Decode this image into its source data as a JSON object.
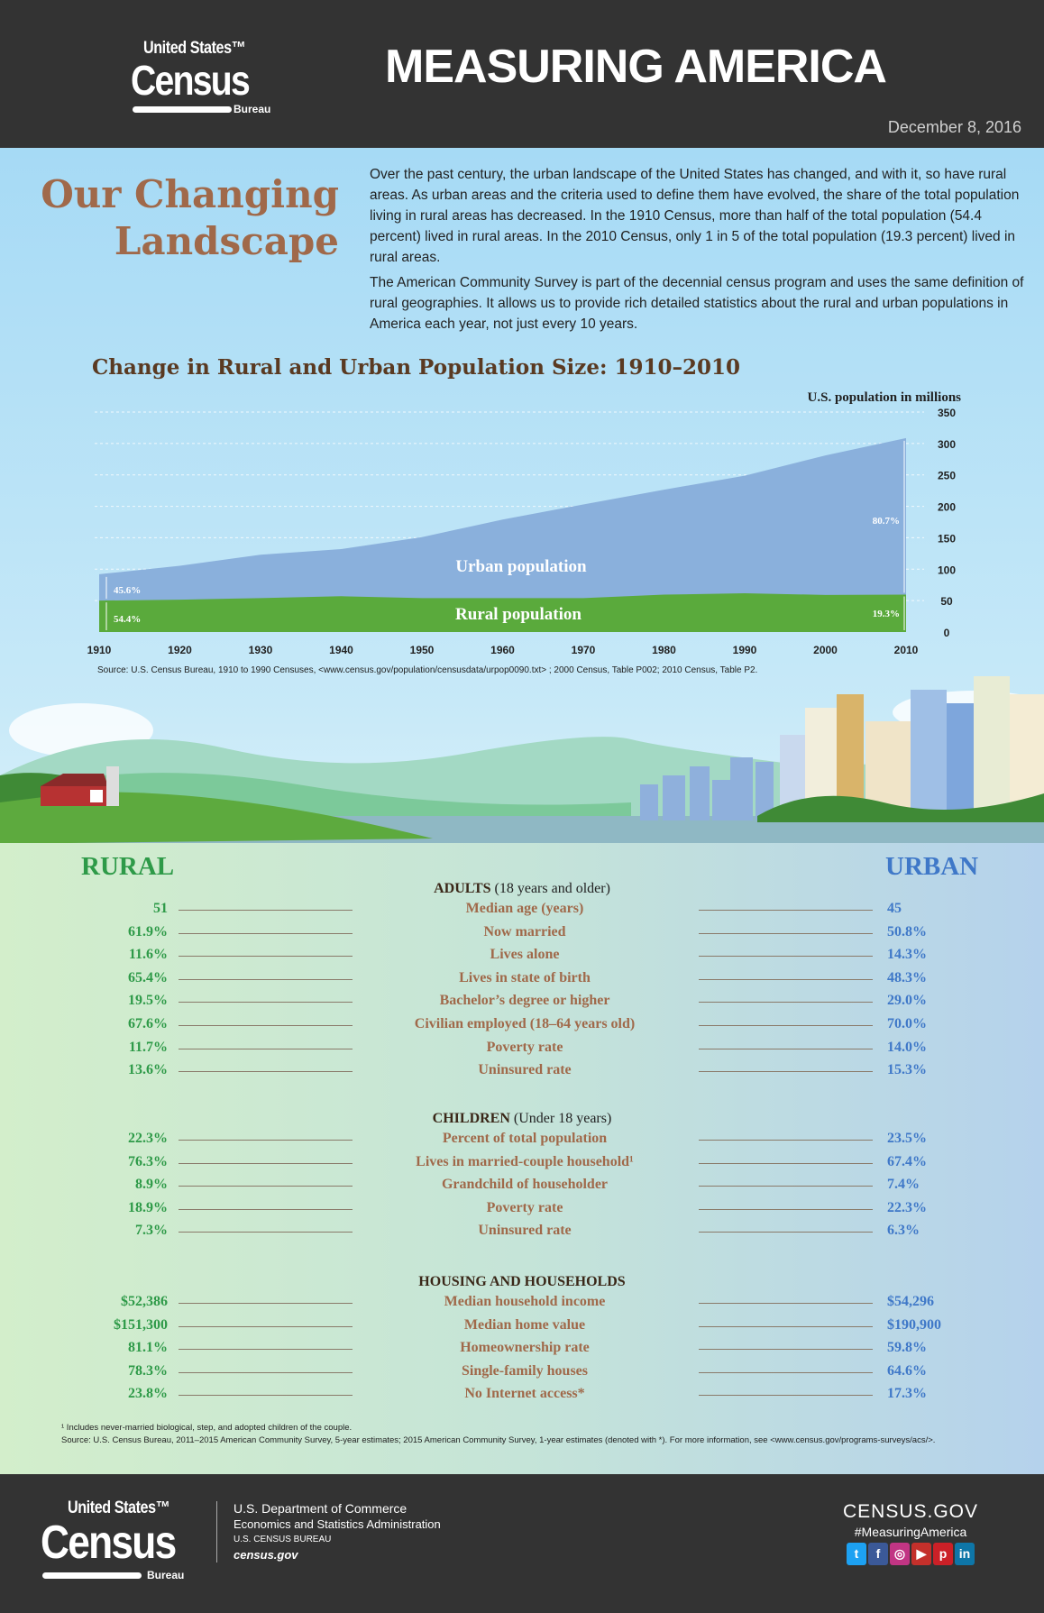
{
  "header": {
    "logo": "United States Census Bureau",
    "title": "MEASURING AMERICA",
    "date": "December 8, 2016"
  },
  "intro": {
    "heading_line1": "Our Changing",
    "heading_line2": "Landscape",
    "p1": "Over the past century, the urban landscape of the United States has changed, and with it, so have rural areas. As urban areas and the criteria used to define them have evolved, the share of the total population living in rural areas has decreased. In the 1910 Census, more than half of the total population (54.4 percent) lived in rural areas. In the 2010 Census, only 1 in 5 of the total population (19.3 percent) lived in rural areas.",
    "p2": "The American Community Survey is part of the decennial census program and uses the same definition of rural geographies. It allows us to provide rich detailed statistics about the rural and urban populations in America each year, not just every 10 years."
  },
  "chart_data": {
    "type": "area",
    "stacked": true,
    "title": "Change in Rural and Urban Population Size: 1910–2010",
    "ylabel": "U.S. population in millions",
    "x": [
      1910,
      1920,
      1930,
      1940,
      1950,
      1960,
      1970,
      1980,
      1990,
      2000,
      2010
    ],
    "ylim": [
      0,
      350
    ],
    "yticks": [
      0,
      50,
      100,
      150,
      200,
      250,
      300,
      350
    ],
    "series": [
      {
        "name": "Rural population",
        "color": "#5aaa3c",
        "values": [
          50,
          51.5,
          54,
          57,
          54,
          54,
          54,
          59.5,
          61.7,
          59,
          59.5
        ]
      },
      {
        "name": "Urban population",
        "color": "#8ab0dc",
        "values": [
          42,
          54,
          69,
          75,
          97,
          125,
          149,
          167,
          187,
          222,
          249
        ]
      }
    ],
    "annotations": {
      "urban_1910": "45.6%",
      "rural_1910": "54.4%",
      "urban_2010": "80.7%",
      "rural_2010": "19.3%"
    },
    "grid": true,
    "source": "Source: U.S. Census Bureau, 1910 to 1990 Censuses, <www.census.gov/population/censusdata/urpop0090.txt> ; 2000 Census, Table P002; 2010 Census, Table P2."
  },
  "stats": {
    "rural_label": "RURAL",
    "urban_label": "URBAN",
    "rural_color": "#2e9a48",
    "urban_color": "#3f78c8",
    "sections": [
      {
        "title": "ADULTS",
        "subtitle": " (18 years and older)",
        "rows": [
          {
            "label": "Median age (years)",
            "rural": "51",
            "urban": "45"
          },
          {
            "label": "Now married",
            "rural": "61.9%",
            "urban": "50.8%"
          },
          {
            "label": "Lives alone",
            "rural": "11.6%",
            "urban": "14.3%"
          },
          {
            "label": "Lives in state of birth",
            "rural": "65.4%",
            "urban": "48.3%"
          },
          {
            "label": "Bachelor’s degree or higher",
            "rural": "19.5%",
            "urban": "29.0%"
          },
          {
            "label": "Civilian employed (18–64 years old)",
            "rural": "67.6%",
            "urban": "70.0%"
          },
          {
            "label": "Poverty rate",
            "rural": "11.7%",
            "urban": "14.0%"
          },
          {
            "label": "Uninsured rate",
            "rural": "13.6%",
            "urban": "15.3%"
          }
        ]
      },
      {
        "title": "CHILDREN",
        "subtitle": " (Under 18 years)",
        "rows": [
          {
            "label": "Percent of total population",
            "rural": "22.3%",
            "urban": "23.5%"
          },
          {
            "label": "Lives in married-couple household¹",
            "rural": "76.3%",
            "urban": "67.4%"
          },
          {
            "label": "Grandchild of householder",
            "rural": "8.9%",
            "urban": "7.4%"
          },
          {
            "label": "Poverty rate",
            "rural": "18.9%",
            "urban": "22.3%"
          },
          {
            "label": "Uninsured rate",
            "rural": "7.3%",
            "urban": "6.3%"
          }
        ]
      },
      {
        "title": "HOUSING AND HOUSEHOLDS",
        "subtitle": "",
        "rows": [
          {
            "label": "Median household income",
            "rural": "$52,386",
            "urban": "$54,296"
          },
          {
            "label": "Median home value",
            "rural": "$151,300",
            "urban": "$190,900"
          },
          {
            "label": "Homeownership rate",
            "rural": "81.1%",
            "urban": "59.8%"
          },
          {
            "label": "Single-family houses",
            "rural": "78.3%",
            "urban": "64.6%"
          },
          {
            "label": "No Internet access*",
            "rural": "23.8%",
            "urban": "17.3%"
          }
        ]
      }
    ],
    "footnote": "¹ Includes never-married biological, step, and adopted children of the couple.",
    "source": "Source: U.S. Census Bureau, 2011–2015 American Community Survey, 5-year estimates; 2015 American Community Survey, 1-year estimates (denoted with *). For more information, see <www.census.gov/programs-surveys/acs/>."
  },
  "footer": {
    "logo": "United States Census Bureau",
    "dept1": "U.S. Department of Commerce",
    "dept2": "Economics and Statistics Administration",
    "dept3": "U.S. CENSUS BUREAU",
    "dept4": "census.gov",
    "site": "CENSUS.GOV",
    "hashtag": "#MeasuringAmerica",
    "social": [
      {
        "icon": "twitter-icon",
        "glyph": "t",
        "color": "#1da1f2"
      },
      {
        "icon": "facebook-icon",
        "glyph": "f",
        "color": "#3b5998"
      },
      {
        "icon": "instagram-icon",
        "glyph": "◎",
        "color": "#c13584"
      },
      {
        "icon": "youtube-icon",
        "glyph": "▶",
        "color": "#c4302b"
      },
      {
        "icon": "pinterest-icon",
        "glyph": "p",
        "color": "#cb2027"
      },
      {
        "icon": "linkedin-icon",
        "glyph": "in",
        "color": "#0e76a8"
      }
    ]
  }
}
